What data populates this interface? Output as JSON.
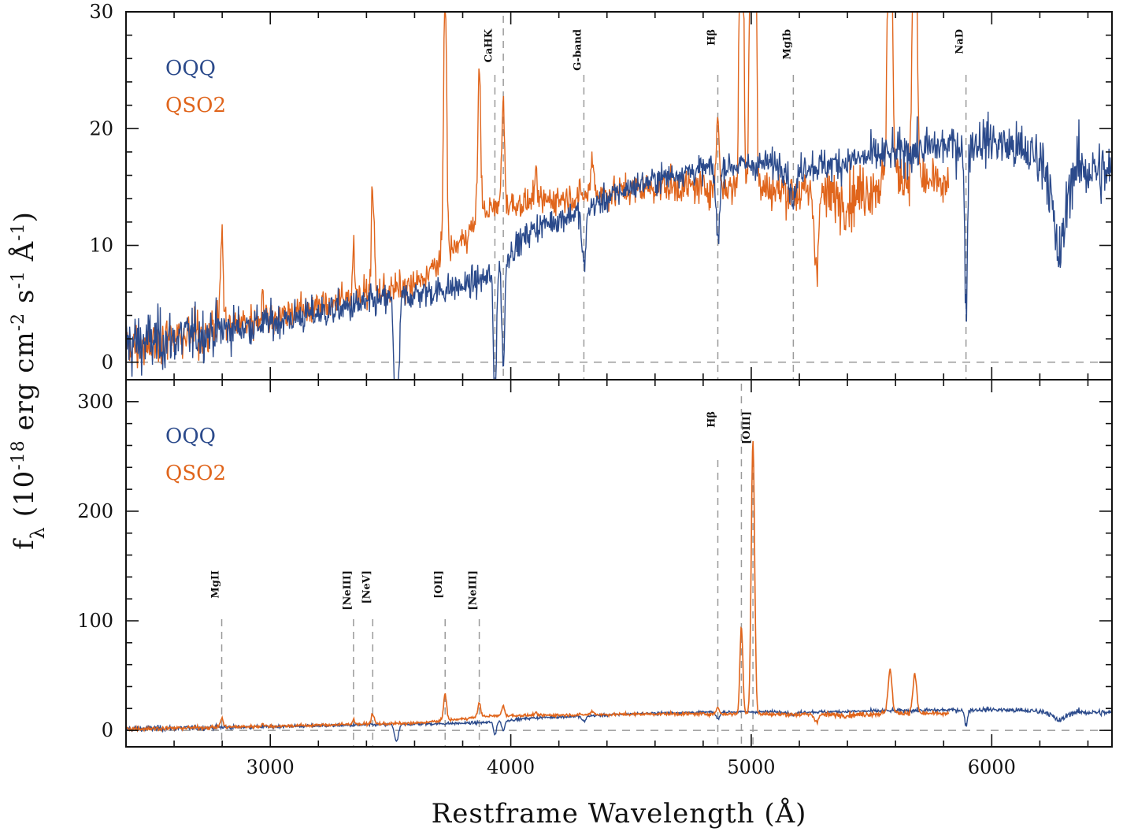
{
  "colors": {
    "oqq": "#2b4a8b",
    "qso2": "#e0651c",
    "marker": "#9a9a9a",
    "axis": "#111111"
  },
  "figure": {
    "xlabel": "Restframe Wavelength (Å)",
    "ylabel": "f_λ (10^-18 erg cm^-2 s^-1 Å^-1)"
  },
  "chart_data": [
    {
      "type": "line",
      "panel": "top",
      "xlim": [
        2400,
        6500
      ],
      "ylim": [
        -1.5,
        30
      ],
      "x_ticks": [
        3000,
        4000,
        5000,
        6000
      ],
      "y_ticks": [
        0,
        10,
        20,
        30
      ],
      "y_tick_labels": [
        "0",
        "10",
        "20",
        "30"
      ],
      "zero_line": 0,
      "legend": {
        "placement": "top-left",
        "entries": [
          "OQQ",
          "QSO2"
        ]
      },
      "lines": [
        {
          "label": "CaHK",
          "x": 3934
        },
        {
          "label": "",
          "x": 3969
        },
        {
          "label": "G-band",
          "x": 4304
        },
        {
          "label": "Hβ",
          "x": 4861
        },
        {
          "label": "MgIb",
          "x": 5175
        },
        {
          "label": "NaD",
          "x": 5893
        }
      ],
      "series": [
        {
          "name": "OQQ",
          "continuum": [
            [
              2400,
              1.5
            ],
            [
              2600,
              2.0
            ],
            [
              2800,
              2.8
            ],
            [
              3000,
              3.4
            ],
            [
              3200,
              4.2
            ],
            [
              3400,
              5.0
            ],
            [
              3600,
              5.8
            ],
            [
              3800,
              6.5
            ],
            [
              3900,
              7.2
            ],
            [
              4000,
              9.5
            ],
            [
              4100,
              11.5
            ],
            [
              4300,
              13.0
            ],
            [
              4500,
              15.0
            ],
            [
              4700,
              16.2
            ],
            [
              4900,
              16.8
            ],
            [
              5100,
              17.0
            ],
            [
              5300,
              16.8
            ],
            [
              5500,
              17.6
            ],
            [
              5800,
              18.5
            ],
            [
              6000,
              19.0
            ],
            [
              6200,
              17.5
            ],
            [
              6500,
              16.0
            ]
          ],
          "noise_sigma": [
            [
              2400,
              2.5
            ],
            [
              3000,
              1.3
            ],
            [
              4000,
              1.0
            ],
            [
              5000,
              1.0
            ],
            [
              6000,
              1.8
            ],
            [
              6500,
              2.5
            ]
          ],
          "features": [
            [
              3525,
              -16,
              8
            ],
            [
              3934,
              -12,
              6
            ],
            [
              3969,
              -9,
              6
            ],
            [
              4304,
              -5,
              8
            ],
            [
              4861,
              -6,
              8
            ],
            [
              5175,
              -3,
              15
            ],
            [
              5893,
              -14,
              6
            ],
            [
              6280,
              -8,
              25
            ]
          ]
        },
        {
          "name": "QSO2",
          "x_range": [
            2400,
            5820
          ],
          "continuum": [
            [
              2400,
              1.5
            ],
            [
              2600,
              2.0
            ],
            [
              2800,
              3.0
            ],
            [
              3000,
              3.8
            ],
            [
              3200,
              4.8
            ],
            [
              3400,
              5.8
            ],
            [
              3600,
              6.5
            ],
            [
              3800,
              10.5
            ],
            [
              3900,
              13.0
            ],
            [
              4000,
              13.5
            ],
            [
              4200,
              14.0
            ],
            [
              4400,
              14.5
            ],
            [
              4600,
              15.0
            ],
            [
              4800,
              15.0
            ],
            [
              5000,
              15.0
            ],
            [
              5200,
              14.5
            ],
            [
              5400,
              14.0
            ],
            [
              5600,
              16.0
            ],
            [
              5820,
              15.0
            ]
          ],
          "noise_sigma": [
            [
              2400,
              1.8
            ],
            [
              3000,
              1.3
            ],
            [
              4000,
              1.0
            ],
            [
              5000,
              1.3
            ],
            [
              5400,
              2.2
            ],
            [
              5820,
              1.6
            ]
          ],
          "features": [
            [
              2798,
              8,
              6
            ],
            [
              2968,
              2,
              6
            ],
            [
              3346,
              4,
              6
            ],
            [
              3426,
              9,
              6
            ],
            [
              3727,
              25,
              6
            ],
            [
              3869,
              13,
              6
            ],
            [
              3968,
              9,
              6
            ],
            [
              4102,
              2,
              6
            ],
            [
              4340,
              3,
              7
            ],
            [
              4861,
              6,
              6
            ],
            [
              4959,
              80,
              6
            ],
            [
              5007,
              250,
              7
            ],
            [
              5270,
              -6,
              8
            ],
            [
              5577,
              40,
              8
            ],
            [
              5680,
              35,
              8
            ]
          ]
        }
      ]
    },
    {
      "type": "line",
      "panel": "bottom",
      "xlim": [
        2400,
        6500
      ],
      "ylim": [
        -15,
        320
      ],
      "x_ticks": [
        3000,
        4000,
        5000,
        6000
      ],
      "x_tick_labels": [
        "3000",
        "4000",
        "5000",
        "6000"
      ],
      "y_ticks": [
        0,
        100,
        200,
        300
      ],
      "y_tick_labels": [
        "0",
        "100",
        "200",
        "300"
      ],
      "zero_line": 0,
      "legend": {
        "placement": "top-left",
        "entries": [
          "OQQ",
          "QSO2"
        ]
      },
      "lines": [
        {
          "label": "MgII",
          "x": 2798
        },
        {
          "label": "[NeIII]",
          "x": 3346
        },
        {
          "label": "[NeV]",
          "x": 3426
        },
        {
          "label": "[OII]",
          "x": 3727
        },
        {
          "label": "[NeIII]",
          "x": 3869
        },
        {
          "label": "Hβ",
          "x": 4861
        },
        {
          "label": "",
          "x": 4959
        },
        {
          "label": "[OIII]",
          "x": 5007
        }
      ]
    }
  ]
}
